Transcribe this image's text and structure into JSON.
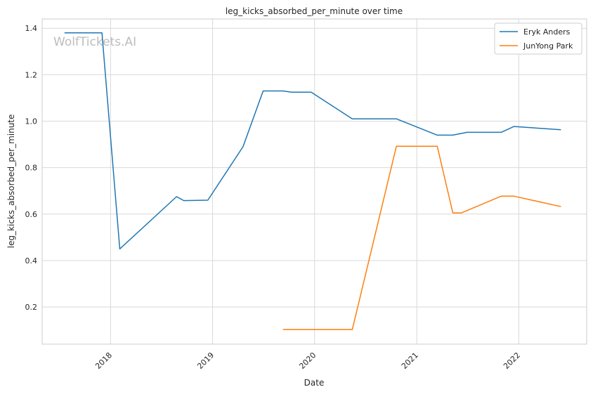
{
  "watermark": "WolfTickets.AI",
  "chart_data": {
    "type": "line",
    "title": "leg_kicks_absorbed_per_minute over time",
    "xlabel": "Date",
    "ylabel": "leg_kicks_absorbed_per_minute",
    "xlim": [
      "2017-05-01",
      "2022-09-01"
    ],
    "ylim": [
      0.04,
      1.44
    ],
    "x_ticks": [
      "2018",
      "2019",
      "2020",
      "2021",
      "2022"
    ],
    "x_tick_dates": [
      "2018-01-01",
      "2019-01-01",
      "2020-01-01",
      "2021-01-01",
      "2022-01-01"
    ],
    "y_ticks": [
      0.2,
      0.4,
      0.6,
      0.8,
      1.0,
      1.2,
      1.4
    ],
    "y_tick_labels": [
      "0.2",
      "0.4",
      "0.6",
      "0.8",
      "1.0",
      "1.2",
      "1.4"
    ],
    "grid": true,
    "legend_position": "top-right",
    "series": [
      {
        "name": "Eryk Anders",
        "color": "#1f77b4",
        "points": [
          [
            "2017-07-20",
            1.38
          ],
          [
            "2017-12-01",
            1.38
          ],
          [
            "2018-02-03",
            0.45
          ],
          [
            "2018-08-25",
            0.675
          ],
          [
            "2018-09-20",
            0.658
          ],
          [
            "2018-12-15",
            0.66
          ],
          [
            "2019-04-20",
            0.89
          ],
          [
            "2019-07-01",
            1.13
          ],
          [
            "2019-09-10",
            1.13
          ],
          [
            "2019-10-10",
            1.125
          ],
          [
            "2019-12-20",
            1.125
          ],
          [
            "2020-05-15",
            1.01
          ],
          [
            "2020-10-20",
            1.01
          ],
          [
            "2021-03-15",
            0.94
          ],
          [
            "2021-05-10",
            0.94
          ],
          [
            "2021-06-30",
            0.952
          ],
          [
            "2021-10-30",
            0.952
          ],
          [
            "2021-12-15",
            0.977
          ],
          [
            "2022-06-01",
            0.963
          ]
        ]
      },
      {
        "name": "JunYong Park",
        "color": "#ff7f0e",
        "points": [
          [
            "2019-09-10",
            0.103
          ],
          [
            "2020-05-15",
            0.103
          ],
          [
            "2020-10-20",
            0.892
          ],
          [
            "2021-03-15",
            0.892
          ],
          [
            "2021-05-10",
            0.605
          ],
          [
            "2021-06-10",
            0.605
          ],
          [
            "2021-10-30",
            0.677
          ],
          [
            "2021-12-15",
            0.677
          ],
          [
            "2022-06-01",
            0.632
          ]
        ]
      }
    ]
  }
}
